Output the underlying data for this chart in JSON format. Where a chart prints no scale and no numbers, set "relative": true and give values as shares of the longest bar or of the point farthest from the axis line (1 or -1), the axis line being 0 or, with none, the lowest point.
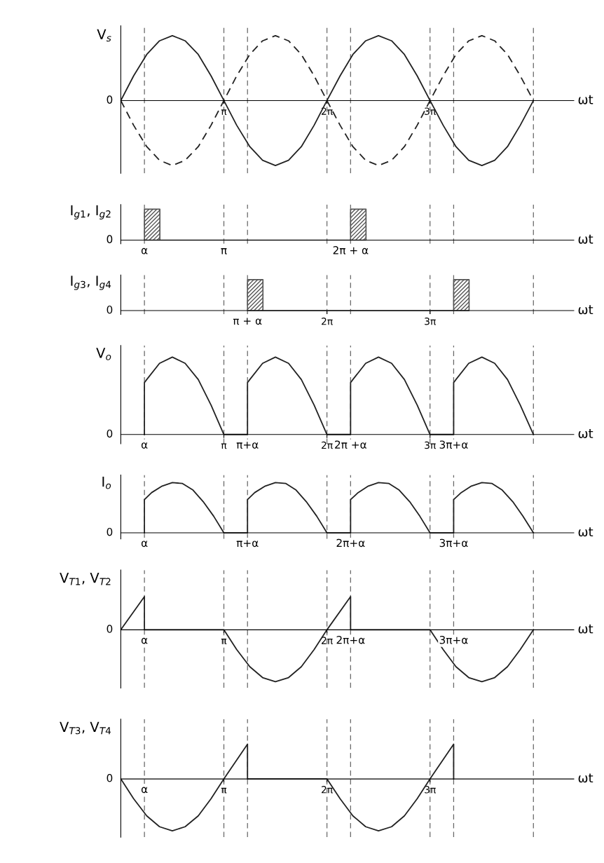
{
  "chart_data": [
    {
      "type": "line",
      "relative": true,
      "ylabel": "V$_{s}$",
      "xlabel": "ωt",
      "xlim": [
        0,
        13.8
      ],
      "xticks": [
        {
          "value": 3.14,
          "label": "π"
        },
        {
          "value": 6.28,
          "label": "2π"
        },
        {
          "value": 9.42,
          "label": "3π"
        }
      ],
      "annotations": [
        "0"
      ],
      "x": [
        0,
        0.39,
        0.79,
        1.18,
        1.57,
        1.96,
        2.36,
        2.75,
        3.14,
        3.53,
        3.93,
        4.32,
        4.71,
        5.11,
        5.5,
        5.89,
        6.28,
        6.68,
        7.07,
        7.46,
        7.85,
        8.25,
        8.64,
        9.03,
        9.42,
        9.82,
        10.21,
        10.6,
        11,
        11.39,
        11.78,
        12.17,
        12.57
      ],
      "series": [
        {
          "color": "#222222",
          "line_style": "solid",
          "values": [
            0,
            0.38,
            0.71,
            0.92,
            1,
            0.92,
            0.71,
            0.38,
            0,
            -0.38,
            -0.71,
            -0.92,
            -1,
            -0.92,
            -0.71,
            -0.38,
            0,
            0.38,
            0.71,
            0.92,
            1,
            0.92,
            0.71,
            0.38,
            0,
            -0.38,
            -0.71,
            -0.92,
            -1,
            -0.92,
            -0.71,
            -0.38,
            0
          ]
        },
        {
          "color": "#222222",
          "line_style": "dashed",
          "values": [
            0,
            -0.38,
            -0.71,
            -0.92,
            -1,
            -0.92,
            -0.71,
            -0.38,
            0,
            0.38,
            0.71,
            0.92,
            1,
            0.92,
            0.71,
            0.38,
            0,
            -0.38,
            -0.71,
            -0.92,
            -1,
            -0.92,
            -0.71,
            -0.38,
            0,
            0.38,
            0.71,
            0.92,
            1,
            0.92,
            0.71,
            0.38,
            0
          ]
        }
      ],
      "ref_lines": [
        {
          "axis": "x",
          "value": 0.72,
          "color": "#666666",
          "line_style": "dashed"
        },
        {
          "axis": "x",
          "value": 3.14,
          "color": "#666666",
          "line_style": "dashed"
        },
        {
          "axis": "x",
          "value": 3.86,
          "color": "#666666",
          "line_style": "dashed"
        },
        {
          "axis": "x",
          "value": 6.28,
          "color": "#666666",
          "line_style": "dashed"
        },
        {
          "axis": "x",
          "value": 7.0,
          "color": "#666666",
          "line_style": "dashed"
        },
        {
          "axis": "x",
          "value": 9.42,
          "color": "#666666",
          "line_style": "dashed"
        },
        {
          "axis": "x",
          "value": 10.14,
          "color": "#666666",
          "line_style": "dashed"
        },
        {
          "axis": "x",
          "value": 12.57,
          "color": "#666666",
          "line_style": "dashed"
        }
      ]
    },
    {
      "type": "area",
      "relative": true,
      "ylabel": "I$_{g1}$, I$_{g2}$",
      "xlabel": "ωt",
      "xlim": [
        0,
        13.8
      ],
      "annotations": [
        "0",
        {
          "text": "α",
          "x": 0.72,
          "y": 0
        },
        {
          "text": "π",
          "x": 3.14,
          "y": 0
        },
        {
          "text": "2π + α",
          "x": 7.0,
          "y": 0
        }
      ],
      "series": [
        {
          "color": "#555555",
          "x": [
            0.72,
            0.72,
            1.19,
            1.19,
            7.0,
            7.0,
            7.47,
            7.47
          ],
          "values": [
            0,
            1,
            1,
            0,
            0,
            1,
            1,
            0
          ]
        }
      ],
      "ref_lines": [
        {
          "axis": "x",
          "value": 0.72,
          "color": "#666666",
          "line_style": "dashed"
        },
        {
          "axis": "x",
          "value": 3.14,
          "color": "#666666",
          "line_style": "dashed"
        },
        {
          "axis": "x",
          "value": 3.86,
          "color": "#666666",
          "line_style": "dashed"
        },
        {
          "axis": "x",
          "value": 6.28,
          "color": "#666666",
          "line_style": "dashed"
        },
        {
          "axis": "x",
          "value": 7.0,
          "color": "#666666",
          "line_style": "dashed"
        },
        {
          "axis": "x",
          "value": 9.42,
          "color": "#666666",
          "line_style": "dashed"
        },
        {
          "axis": "x",
          "value": 10.14,
          "color": "#666666",
          "line_style": "dashed"
        },
        {
          "axis": "x",
          "value": 12.57,
          "color": "#666666",
          "line_style": "dashed"
        }
      ]
    },
    {
      "type": "area",
      "relative": true,
      "ylabel": "I$_{g3}$, I$_{g4}$",
      "xlabel": "ωt",
      "xlim": [
        0,
        13.8
      ],
      "xticks": [
        {
          "value": 6.28,
          "label": "2π"
        },
        {
          "value": 9.42,
          "label": "3π"
        }
      ],
      "annotations": [
        "0",
        {
          "text": "π + α",
          "x": 3.86,
          "y": 0
        }
      ],
      "series": [
        {
          "color": "#555555",
          "x": [
            3.86,
            3.86,
            4.33,
            4.33,
            10.14,
            10.14,
            10.61,
            10.61
          ],
          "values": [
            0,
            1,
            1,
            0,
            0,
            1,
            1,
            0
          ]
        }
      ],
      "ref_lines": [
        {
          "axis": "x",
          "value": 0.72,
          "color": "#666666",
          "line_style": "dashed"
        },
        {
          "axis": "x",
          "value": 3.14,
          "color": "#666666",
          "line_style": "dashed"
        },
        {
          "axis": "x",
          "value": 3.86,
          "color": "#666666",
          "line_style": "dashed"
        },
        {
          "axis": "x",
          "value": 6.28,
          "color": "#666666",
          "line_style": "dashed"
        },
        {
          "axis": "x",
          "value": 7.0,
          "color": "#666666",
          "line_style": "dashed"
        },
        {
          "axis": "x",
          "value": 9.42,
          "color": "#666666",
          "line_style": "dashed"
        },
        {
          "axis": "x",
          "value": 10.14,
          "color": "#666666",
          "line_style": "dashed"
        },
        {
          "axis": "x",
          "value": 12.57,
          "color": "#666666",
          "line_style": "dashed"
        }
      ]
    },
    {
      "type": "line",
      "relative": true,
      "ylabel": "V$_{o}$",
      "xlabel": "ωt",
      "xlim": [
        0,
        13.8
      ],
      "xticks": [
        {
          "value": 3.14,
          "label": "π"
        },
        {
          "value": 6.28,
          "label": "2π"
        },
        {
          "value": 9.42,
          "label": "3π"
        }
      ],
      "annotations": [
        "0",
        {
          "text": "α",
          "x": 0.72,
          "y": 0
        },
        {
          "text": "π+α",
          "x": 3.86,
          "y": 0
        },
        {
          "text": "2π +α",
          "x": 7.0,
          "y": 0
        },
        {
          "text": "3π+α",
          "x": 10.14,
          "y": 0
        }
      ],
      "series": [
        {
          "color": "#222222",
          "line_style": "solid",
          "x": [
            0.72,
            0.72,
            0.79,
            1.18,
            1.57,
            1.96,
            2.36,
            2.75,
            3.14,
            3.86,
            3.86,
            3.93,
            4.32,
            4.71,
            5.11,
            5.5,
            5.89,
            6.28,
            7.0,
            7.0,
            7.07,
            7.46,
            7.85,
            8.25,
            8.64,
            9.03,
            9.42,
            10.14,
            10.14,
            10.21,
            10.6,
            11,
            11.39,
            11.78,
            12.17,
            12.57
          ],
          "values": [
            0,
            0.67,
            0.71,
            0.92,
            1,
            0.92,
            0.71,
            0.38,
            0,
            0,
            0.67,
            0.71,
            0.92,
            1,
            0.92,
            0.71,
            0.38,
            0,
            0,
            0.67,
            0.71,
            0.92,
            1,
            0.92,
            0.71,
            0.38,
            0,
            0,
            0.67,
            0.71,
            0.92,
            1,
            0.92,
            0.71,
            0.38,
            0
          ]
        }
      ],
      "ref_lines": [
        {
          "axis": "x",
          "value": 0.72,
          "color": "#666666",
          "line_style": "dashed"
        },
        {
          "axis": "x",
          "value": 3.14,
          "color": "#666666",
          "line_style": "dashed"
        },
        {
          "axis": "x",
          "value": 3.86,
          "color": "#666666",
          "line_style": "dashed"
        },
        {
          "axis": "x",
          "value": 6.28,
          "color": "#666666",
          "line_style": "dashed"
        },
        {
          "axis": "x",
          "value": 7.0,
          "color": "#666666",
          "line_style": "dashed"
        },
        {
          "axis": "x",
          "value": 9.42,
          "color": "#666666",
          "line_style": "dashed"
        },
        {
          "axis": "x",
          "value": 10.14,
          "color": "#666666",
          "line_style": "dashed"
        },
        {
          "axis": "x",
          "value": 12.57,
          "color": "#666666",
          "line_style": "dashed"
        }
      ]
    },
    {
      "type": "line",
      "relative": true,
      "ylabel": "I$_{o}$",
      "xlabel": "ωt",
      "xlim": [
        0,
        13.8
      ],
      "annotations": [
        "0",
        {
          "text": "α",
          "x": 0.72,
          "y": 0
        },
        {
          "text": "π+α",
          "x": 3.86,
          "y": 0
        },
        {
          "text": "2π+α",
          "x": 7.0,
          "y": 0
        },
        {
          "text": "3π+α",
          "x": 10.14,
          "y": 0
        }
      ],
      "series": [
        {
          "color": "#222222",
          "line_style": "solid",
          "x": [
            0.72,
            0.72,
            0.94,
            1.26,
            1.57,
            1.88,
            2.2,
            2.51,
            2.83,
            3.14,
            3.86,
            3.86,
            4.08,
            4.4,
            4.71,
            5.03,
            5.34,
            5.65,
            5.97,
            6.28,
            7.0,
            7.0,
            7.23,
            7.54,
            7.85,
            8.17,
            8.48,
            8.8,
            9.11,
            9.42,
            10.14,
            10.14,
            10.37,
            10.68,
            11,
            11.31,
            11.62,
            11.94,
            12.25,
            12.57
          ],
          "values": [
            0,
            0.66,
            0.8,
            0.93,
            1,
            0.98,
            0.85,
            0.62,
            0.33,
            0,
            0,
            0.66,
            0.8,
            0.93,
            1,
            0.98,
            0.85,
            0.62,
            0.33,
            0,
            0,
            0.66,
            0.8,
            0.93,
            1,
            0.98,
            0.85,
            0.62,
            0.33,
            0,
            0,
            0.66,
            0.8,
            0.93,
            1,
            0.98,
            0.85,
            0.62,
            0.33,
            0
          ]
        }
      ],
      "ref_lines": [
        {
          "axis": "x",
          "value": 0.72,
          "color": "#666666",
          "line_style": "dashed"
        },
        {
          "axis": "x",
          "value": 3.14,
          "color": "#666666",
          "line_style": "dashed"
        },
        {
          "axis": "x",
          "value": 3.86,
          "color": "#666666",
          "line_style": "dashed"
        },
        {
          "axis": "x",
          "value": 6.28,
          "color": "#666666",
          "line_style": "dashed"
        },
        {
          "axis": "x",
          "value": 7.0,
          "color": "#666666",
          "line_style": "dashed"
        },
        {
          "axis": "x",
          "value": 9.42,
          "color": "#666666",
          "line_style": "dashed"
        },
        {
          "axis": "x",
          "value": 10.14,
          "color": "#666666",
          "line_style": "dashed"
        },
        {
          "axis": "x",
          "value": 12.57,
          "color": "#666666",
          "line_style": "dashed"
        }
      ]
    },
    {
      "type": "line",
      "relative": true,
      "ylabel": "V$_{T1}$, V$_{T2}$",
      "xlabel": "ωt",
      "xlim": [
        0,
        13.8
      ],
      "xticks": [
        {
          "value": 3.14,
          "label": "π"
        },
        {
          "value": 6.28,
          "label": "2π"
        }
      ],
      "annotations": [
        "0",
        {
          "text": "α",
          "x": 0.72,
          "y": 0
        },
        {
          "text": "2π+α",
          "x": 7.0,
          "y": 0
        },
        {
          "text": "3π+α",
          "x": 10.14,
          "y": 0
        }
      ],
      "series": [
        {
          "color": "#222222",
          "line_style": "solid",
          "x": [
            0,
            0.72,
            0.72,
            3.14,
            3.53,
            3.93,
            4.32,
            4.71,
            5.11,
            5.5,
            5.89,
            6.28,
            7.0,
            7.0,
            9.42,
            9.82,
            10.21,
            10.6,
            11,
            11.39,
            11.78,
            12.17,
            12.57
          ],
          "values": [
            0,
            0.64,
            0,
            0,
            -0.38,
            -0.71,
            -0.92,
            -1,
            -0.92,
            -0.71,
            -0.38,
            0,
            0.64,
            0,
            0,
            -0.38,
            -0.71,
            -0.92,
            -1,
            -0.92,
            -0.71,
            -0.38,
            0
          ]
        }
      ],
      "ref_lines": [
        {
          "axis": "x",
          "value": 0.72,
          "color": "#666666",
          "line_style": "dashed"
        },
        {
          "axis": "x",
          "value": 3.14,
          "color": "#666666",
          "line_style": "dashed"
        },
        {
          "axis": "x",
          "value": 3.86,
          "color": "#666666",
          "line_style": "dashed"
        },
        {
          "axis": "x",
          "value": 6.28,
          "color": "#666666",
          "line_style": "dashed"
        },
        {
          "axis": "x",
          "value": 7.0,
          "color": "#666666",
          "line_style": "dashed"
        },
        {
          "axis": "x",
          "value": 9.42,
          "color": "#666666",
          "line_style": "dashed"
        },
        {
          "axis": "x",
          "value": 10.14,
          "color": "#666666",
          "line_style": "dashed"
        },
        {
          "axis": "x",
          "value": 12.57,
          "color": "#666666",
          "line_style": "dashed"
        }
      ]
    },
    {
      "type": "line",
      "relative": true,
      "ylabel": "V$_{T3}$, V$_{T4}$",
      "xlabel": "ωt",
      "xlim": [
        0,
        13.8
      ],
      "xticks": [
        {
          "value": 3.14,
          "label": "π"
        },
        {
          "value": 6.28,
          "label": "2π"
        },
        {
          "value": 9.42,
          "label": "3π"
        }
      ],
      "annotations": [
        "0",
        {
          "text": "α",
          "x": 0.72,
          "y": 0
        }
      ],
      "series": [
        {
          "color": "#222222",
          "line_style": "solid",
          "x": [
            0,
            0.39,
            0.79,
            1.18,
            1.57,
            1.96,
            2.36,
            2.75,
            3.14,
            3.86,
            3.86,
            6.28,
            6.68,
            7.07,
            7.46,
            7.85,
            8.25,
            8.64,
            9.03,
            9.42,
            10.14,
            10.14
          ],
          "values": [
            0,
            -0.38,
            -0.71,
            -0.92,
            -1,
            -0.92,
            -0.71,
            -0.38,
            0,
            0.67,
            0,
            0,
            -0.38,
            -0.71,
            -0.92,
            -1,
            -0.92,
            -0.71,
            -0.38,
            0,
            0.67,
            0
          ]
        }
      ],
      "ref_lines": [
        {
          "axis": "x",
          "value": 0.72,
          "color": "#666666",
          "line_style": "dashed"
        },
        {
          "axis": "x",
          "value": 3.14,
          "color": "#666666",
          "line_style": "dashed"
        },
        {
          "axis": "x",
          "value": 3.86,
          "color": "#666666",
          "line_style": "dashed"
        },
        {
          "axis": "x",
          "value": 6.28,
          "color": "#666666",
          "line_style": "dashed"
        },
        {
          "axis": "x",
          "value": 7.0,
          "color": "#666666",
          "line_style": "dashed"
        },
        {
          "axis": "x",
          "value": 9.42,
          "color": "#666666",
          "line_style": "dashed"
        },
        {
          "axis": "x",
          "value": 10.14,
          "color": "#666666",
          "line_style": "dashed"
        },
        {
          "axis": "x",
          "value": 12.57,
          "color": "#666666",
          "line_style": "dashed"
        }
      ]
    }
  ]
}
